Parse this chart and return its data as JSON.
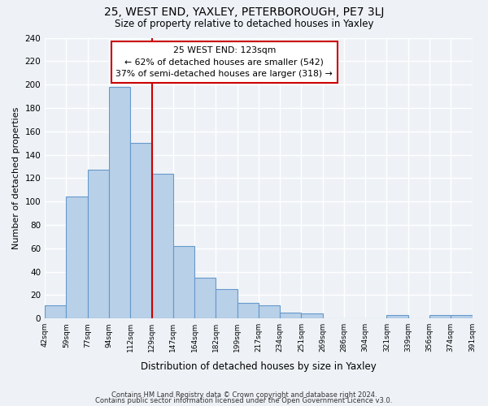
{
  "title1": "25, WEST END, YAXLEY, PETERBOROUGH, PE7 3LJ",
  "title2": "Size of property relative to detached houses in Yaxley",
  "xlabel": "Distribution of detached houses by size in Yaxley",
  "ylabel": "Number of detached properties",
  "bin_edges": [
    "42sqm",
    "59sqm",
    "77sqm",
    "94sqm",
    "112sqm",
    "129sqm",
    "147sqm",
    "164sqm",
    "182sqm",
    "199sqm",
    "217sqm",
    "234sqm",
    "251sqm",
    "269sqm",
    "286sqm",
    "304sqm",
    "321sqm",
    "339sqm",
    "356sqm",
    "374sqm",
    "391sqm"
  ],
  "bar_values": [
    11,
    104,
    127,
    198,
    150,
    124,
    62,
    35,
    25,
    13,
    11,
    5,
    4,
    0,
    0,
    0,
    3,
    0,
    3,
    3
  ],
  "bar_color": "#b8d0e8",
  "bar_edge_color": "#6699cc",
  "annotation_title": "25 WEST END: 123sqm",
  "annotation_line1": "← 62% of detached houses are smaller (542)",
  "annotation_line2": "37% of semi-detached houses are larger (318) →",
  "vline_color": "#cc0000",
  "vline_pos": 5,
  "ylim": [
    0,
    240
  ],
  "yticks": [
    0,
    20,
    40,
    60,
    80,
    100,
    120,
    140,
    160,
    180,
    200,
    220,
    240
  ],
  "footer1": "Contains HM Land Registry data © Crown copyright and database right 2024.",
  "footer2": "Contains public sector information licensed under the Open Government Licence v3.0.",
  "bg_color": "#eef2f7",
  "grid_color": "#ffffff"
}
